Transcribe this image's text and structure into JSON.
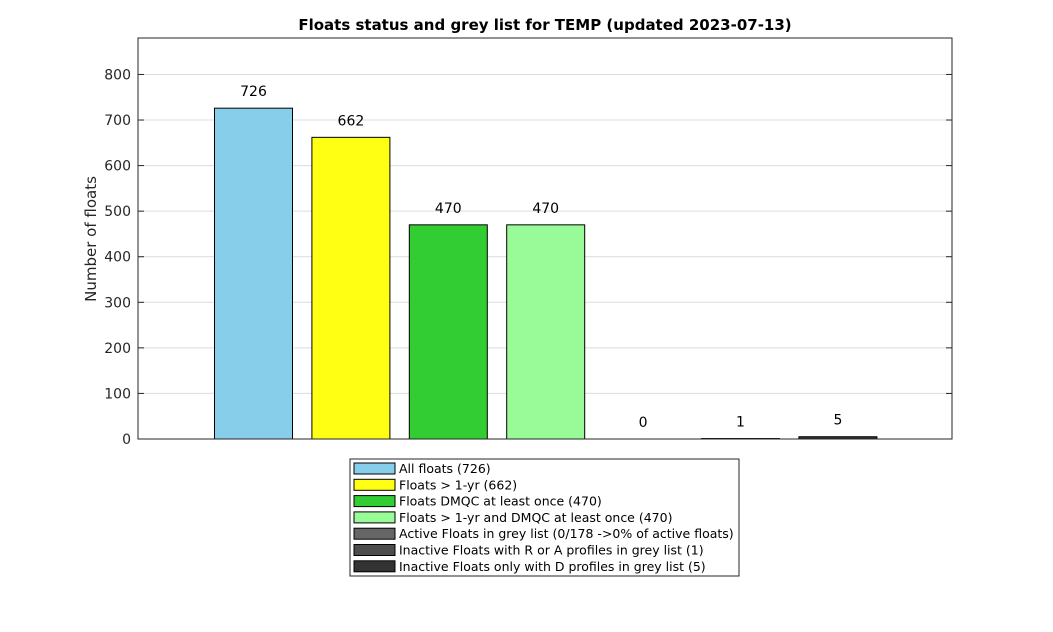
{
  "chart_data": {
    "type": "bar",
    "title": "Floats status and grey list for TEMP (updated 2023-07-13)",
    "xlabel": "",
    "ylabel": "Number of floats",
    "ylim": [
      0,
      880
    ],
    "yticks": [
      0,
      100,
      200,
      300,
      400,
      500,
      600,
      700,
      800
    ],
    "grid": "horizontal",
    "legend_position": "bottom",
    "bars": [
      {
        "legend": "All floats (726)",
        "value": 726,
        "label": "726",
        "color": "#87ceeb"
      },
      {
        "legend": "Floats > 1-yr (662)",
        "value": 662,
        "label": "662",
        "color": "#ffff14"
      },
      {
        "legend": "Floats DMQC at least once (470)",
        "value": 470,
        "label": "470",
        "color": "#32cd32"
      },
      {
        "legend": "Floats > 1-yr and DMQC at least once (470)",
        "value": 470,
        "label": "470",
        "color": "#98fb98"
      },
      {
        "legend": "Active Floats in grey list (0/178 ->0% of active floats)",
        "value": 0,
        "label": "0",
        "color": "#666666"
      },
      {
        "legend": "Inactive Floats with R or A profiles in grey list (1)",
        "value": 1,
        "label": "1",
        "color": "#4d4d4d"
      },
      {
        "legend": "Inactive Floats only with D profiles in grey list (5)",
        "value": 5,
        "label": "5",
        "color": "#333333"
      }
    ]
  }
}
